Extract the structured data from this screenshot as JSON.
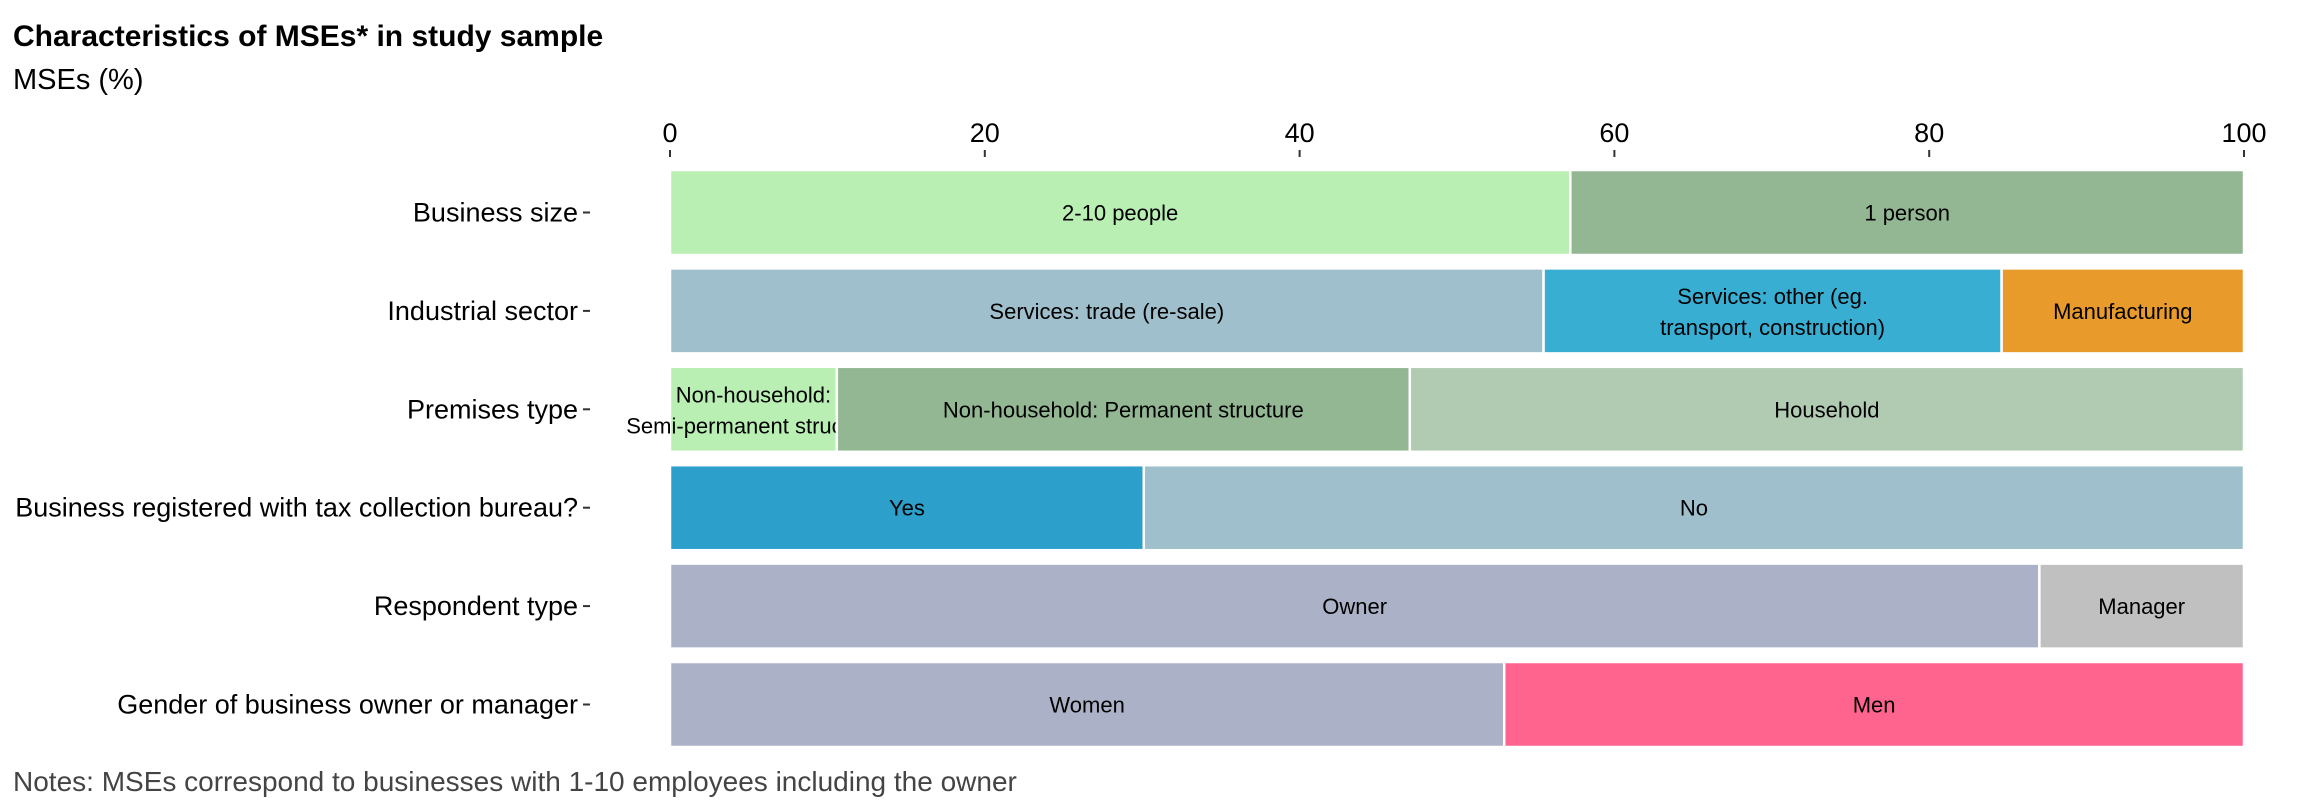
{
  "chart_data": {
    "type": "bar",
    "orientation": "horizontal",
    "stacked": true,
    "title": "Characteristics of MSEs* in study sample",
    "subtitle": "MSEs (%)",
    "note": "Notes: MSEs correspond to businesses with 1-10 employees including the owner",
    "xlim": [
      0,
      100
    ],
    "x_ticks": [
      0,
      20,
      40,
      60,
      80,
      100
    ],
    "x_axis_position": "top",
    "grid": false,
    "legend": "none",
    "categories": [
      {
        "name": "Business size",
        "segments": [
          {
            "label": "2-10 people",
            "value": 57.2,
            "color": "#b9efb3"
          },
          {
            "label": "1 person",
            "value": 42.8,
            "color": "#92b792"
          }
        ]
      },
      {
        "name": "Industrial sector",
        "segments": [
          {
            "label": "Services: trade (re-sale)",
            "value": 55.5,
            "color": "#9fbfcc"
          },
          {
            "label": "Services: other (eg. transport, construction)",
            "value": 29.1,
            "color": "#38aed3"
          },
          {
            "label": "Manufacturing",
            "value": 15.4,
            "color": "#e89a2a"
          }
        ]
      },
      {
        "name": "Premises type",
        "segments": [
          {
            "label": "Non-household: Semi-permanent structure",
            "value": 10.6,
            "color": "#b9efb3"
          },
          {
            "label": "Non-household: Permanent structure",
            "value": 36.4,
            "color": "#92b792"
          },
          {
            "label": "Household",
            "value": 53.0,
            "color": "#b1cbb3"
          }
        ]
      },
      {
        "name": "Business registered with tax collection bureau?",
        "segments": [
          {
            "label": "Yes",
            "value": 30.1,
            "color": "#2c9fcb"
          },
          {
            "label": "No",
            "value": 69.9,
            "color": "#9fbfcc"
          }
        ]
      },
      {
        "name": "Respondent type",
        "segments": [
          {
            "label": "Owner",
            "value": 87.0,
            "color": "#abb1c7"
          },
          {
            "label": "Manager",
            "value": 13.0,
            "color": "#c0c0c0"
          }
        ]
      },
      {
        "name": "Gender of business owner or manager",
        "segments": [
          {
            "label": "Women",
            "value": 53.0,
            "color": "#abb1c7"
          },
          {
            "label": "Men",
            "value": 47.0,
            "color": "#fe648e"
          }
        ]
      }
    ]
  }
}
